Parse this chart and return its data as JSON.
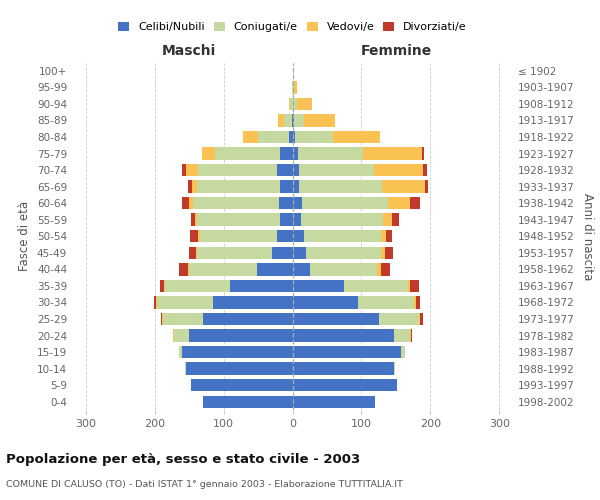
{
  "age_groups": [
    "100+",
    "95-99",
    "90-94",
    "85-89",
    "80-84",
    "75-79",
    "70-74",
    "65-69",
    "60-64",
    "55-59",
    "50-54",
    "45-49",
    "40-44",
    "35-39",
    "30-34",
    "25-29",
    "20-24",
    "15-19",
    "10-14",
    "5-9",
    "0-4"
  ],
  "birth_years": [
    "≤ 1902",
    "1903-1907",
    "1908-1912",
    "1913-1917",
    "1918-1922",
    "1923-1927",
    "1928-1932",
    "1933-1937",
    "1938-1942",
    "1943-1947",
    "1948-1952",
    "1953-1957",
    "1958-1962",
    "1963-1967",
    "1968-1972",
    "1973-1977",
    "1978-1982",
    "1983-1987",
    "1988-1992",
    "1993-1997",
    "1998-2002"
  ],
  "maschi": {
    "celibi": [
      0,
      0,
      0,
      1,
      5,
      18,
      22,
      18,
      20,
      18,
      22,
      30,
      52,
      90,
      115,
      130,
      150,
      160,
      155,
      148,
      130
    ],
    "coniugati": [
      0,
      1,
      3,
      12,
      45,
      95,
      115,
      120,
      125,
      120,
      112,
      108,
      98,
      95,
      82,
      58,
      22,
      5,
      1,
      0,
      0
    ],
    "vedovi": [
      0,
      0,
      2,
      8,
      22,
      18,
      18,
      8,
      5,
      3,
      3,
      2,
      2,
      2,
      1,
      1,
      1,
      0,
      0,
      0,
      0
    ],
    "divorziati": [
      0,
      0,
      0,
      0,
      0,
      0,
      5,
      5,
      10,
      6,
      12,
      10,
      12,
      6,
      3,
      2,
      1,
      0,
      0,
      0,
      0
    ]
  },
  "femmine": {
    "nubili": [
      0,
      0,
      1,
      2,
      4,
      8,
      10,
      10,
      14,
      13,
      16,
      20,
      25,
      75,
      95,
      125,
      148,
      158,
      148,
      152,
      120
    ],
    "coniugate": [
      0,
      2,
      5,
      15,
      55,
      95,
      108,
      120,
      125,
      118,
      112,
      108,
      98,
      92,
      82,
      58,
      22,
      5,
      1,
      0,
      0
    ],
    "vedove": [
      0,
      5,
      22,
      45,
      68,
      85,
      72,
      62,
      32,
      14,
      8,
      6,
      5,
      3,
      2,
      2,
      2,
      0,
      0,
      0,
      0
    ],
    "divorziate": [
      0,
      0,
      0,
      0,
      0,
      3,
      5,
      5,
      14,
      10,
      8,
      12,
      14,
      14,
      6,
      5,
      1,
      0,
      0,
      0,
      0
    ]
  },
  "colors": {
    "celibi": "#4472c4",
    "coniugati": "#c5d9a0",
    "vedovi": "#fac252",
    "divorziati": "#c0392b"
  },
  "title": "Popolazione per età, sesso e stato civile - 2003",
  "subtitle": "COMUNE DI CALUSO (TO) - Dati ISTAT 1° gennaio 2003 - Elaborazione TUTTITALIA.IT",
  "xlabel_left": "Maschi",
  "xlabel_right": "Femmine",
  "ylabel_left": "Fasce di età",
  "ylabel_right": "Anni di nascita",
  "legend_labels": [
    "Celibi/Nubili",
    "Coniugati/e",
    "Vedovi/e",
    "Divorziati/e"
  ],
  "xlim": 320,
  "bg_color": "#ffffff",
  "grid_color": "#cccccc",
  "axis_text_color": "#666666"
}
